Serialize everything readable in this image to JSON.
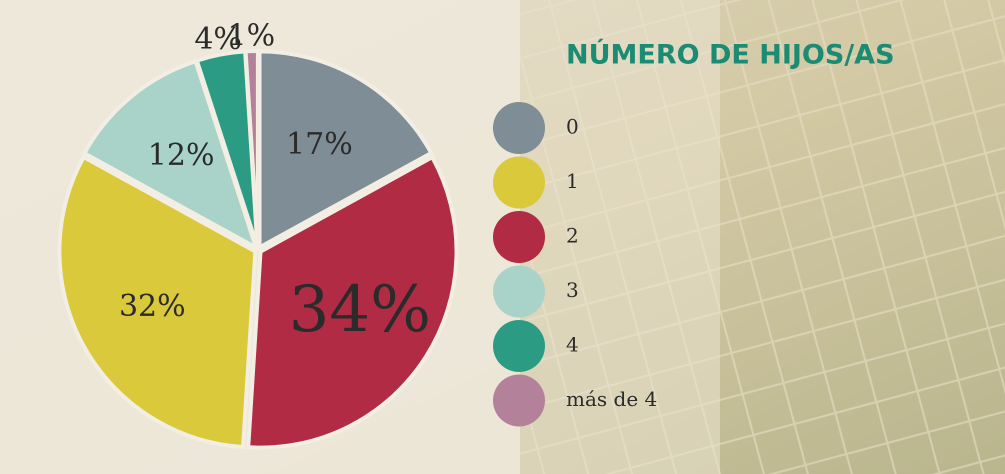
{
  "chart_data": {
    "type": "pie",
    "title": "NÚMERO DE HIJOS/AS",
    "categories": [
      "0",
      "1",
      "2",
      "3",
      "4",
      "más de 4"
    ],
    "values": [
      17,
      32,
      34,
      12,
      4,
      1
    ],
    "value_labels": [
      "17%",
      "32%",
      "34%",
      "12%",
      "4%",
      "1%"
    ],
    "colors": [
      "#7e8d96",
      "#dbc93c",
      "#b02b43",
      "#a9d3c8",
      "#2b9c83",
      "#b3829a"
    ],
    "title_color": "#1b8b74",
    "legend": "right"
  }
}
